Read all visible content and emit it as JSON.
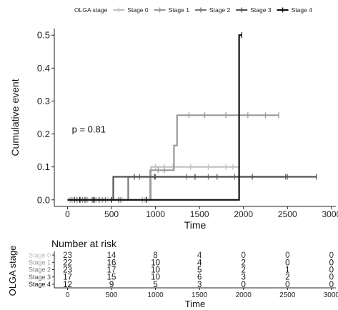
{
  "chart_data": [
    {
      "type": "line",
      "subtype": "kaplan-meier-cumulative-event",
      "title": "",
      "xlabel": "Time",
      "ylabel": "Cumulative event",
      "xlim": [
        -150,
        3050
      ],
      "ylim": [
        -0.02,
        0.52
      ],
      "xticks": [
        0,
        500,
        1000,
        1500,
        2000,
        2500,
        3000
      ],
      "yticks": [
        0.0,
        0.1,
        0.2,
        0.3,
        0.4,
        0.5
      ],
      "ytick_labels": [
        "0.0",
        "0.1",
        "0.2",
        "0.3",
        "0.4",
        "0.5"
      ],
      "grid": false,
      "legend": {
        "title": "OLGA stage",
        "placement": "top",
        "entries": [
          "Stage 0",
          "Stage 1",
          "Stage 2",
          "Stage 3",
          "Stage 4"
        ]
      },
      "annotation": "p = 0.81",
      "annotation_pos": {
        "x": 50,
        "y": 0.205
      },
      "series": [
        {
          "name": "Stage 0",
          "color": "#c0c0c0",
          "steps": [
            [
              0,
              0
            ],
            [
              950,
              0
            ],
            [
              950,
              0.1
            ],
            [
              1950,
              0.1
            ]
          ],
          "censored": [
            [
              20,
              0
            ],
            [
              60,
              0
            ],
            [
              100,
              0
            ],
            [
              150,
              0
            ],
            [
              190,
              0
            ],
            [
              230,
              0
            ],
            [
              290,
              0
            ],
            [
              330,
              0
            ],
            [
              380,
              0
            ],
            [
              460,
              0
            ],
            [
              620,
              0
            ],
            [
              880,
              0
            ],
            [
              1000,
              0.1
            ],
            [
              1100,
              0.1
            ],
            [
              1200,
              0.1
            ],
            [
              1400,
              0.1
            ],
            [
              1600,
              0.1
            ],
            [
              1800,
              0.1
            ],
            [
              1880,
              0.1
            ],
            [
              1950,
              0.1
            ]
          ]
        },
        {
          "name": "Stage 1",
          "color": "#9a9a9a",
          "steps": [
            [
              0,
              0
            ],
            [
              940,
              0
            ],
            [
              940,
              0.09
            ],
            [
              1210,
              0.09
            ],
            [
              1210,
              0.165
            ],
            [
              1245,
              0.165
            ],
            [
              1245,
              0.257
            ],
            [
              2400,
              0.257
            ]
          ],
          "censored": [
            [
              110,
              0
            ],
            [
              220,
              0
            ],
            [
              310,
              0
            ],
            [
              400,
              0
            ],
            [
              600,
              0
            ],
            [
              850,
              0
            ],
            [
              1030,
              0.09
            ],
            [
              1100,
              0.09
            ],
            [
              1380,
              0.257
            ],
            [
              1560,
              0.257
            ],
            [
              1800,
              0.257
            ],
            [
              2050,
              0.257
            ],
            [
              2250,
              0.257
            ],
            [
              2400,
              0.257
            ]
          ]
        },
        {
          "name": "Stage 2",
          "color": "#7a7a7a",
          "steps": [
            [
              0,
              0
            ],
            [
              690,
              0
            ],
            [
              690,
              0.07
            ],
            [
              2500,
              0.07
            ]
          ],
          "censored": [
            [
              40,
              0
            ],
            [
              170,
              0
            ],
            [
              280,
              0
            ],
            [
              430,
              0
            ],
            [
              580,
              0
            ],
            [
              820,
              0.07
            ],
            [
              1000,
              0.07
            ],
            [
              1350,
              0.07
            ],
            [
              1600,
              0.07
            ],
            [
              1900,
              0.07
            ],
            [
              2500,
              0.07
            ]
          ]
        },
        {
          "name": "Stage 3",
          "color": "#545454",
          "steps": [
            [
              0,
              0
            ],
            [
              520,
              0
            ],
            [
              520,
              0.07
            ],
            [
              2830,
              0.07
            ]
          ],
          "censored": [
            [
              80,
              0
            ],
            [
              200,
              0
            ],
            [
              360,
              0
            ],
            [
              760,
              0.07
            ],
            [
              990,
              0.07
            ],
            [
              1450,
              0.07
            ],
            [
              1700,
              0.07
            ],
            [
              2100,
              0.07
            ],
            [
              2480,
              0.07
            ],
            [
              2830,
              0.07
            ]
          ]
        },
        {
          "name": "Stage 4",
          "color": "#111111",
          "steps": [
            [
              0,
              0
            ],
            [
              1950,
              0
            ],
            [
              1950,
              0.5
            ],
            [
              1980,
              0.5
            ]
          ],
          "censored": [
            [
              140,
              0
            ],
            [
              300,
              0
            ],
            [
              500,
              0
            ],
            [
              900,
              0
            ],
            [
              1980,
              0.5
            ]
          ]
        }
      ]
    },
    {
      "type": "table",
      "subtype": "risk-table",
      "title": "Number at risk",
      "xlabel": "Time",
      "ylabel": "OLGA stage",
      "xlim": [
        -150,
        3050
      ],
      "xticks": [
        0,
        500,
        1000,
        1500,
        2000,
        2500,
        3000
      ],
      "times": [
        0,
        500,
        1000,
        1500,
        2000,
        2500,
        3000
      ],
      "rows": [
        {
          "name": "Stage 0",
          "color": "#c0c0c0",
          "values": [
            "23",
            "14",
            "8",
            "4",
            "0",
            "0",
            "0"
          ]
        },
        {
          "name": "Stage 1",
          "color": "#9a9a9a",
          "values": [
            "22",
            "16",
            "10",
            "4",
            "2",
            "0",
            "0"
          ]
        },
        {
          "name": "Stage 2",
          "color": "#7a7a7a",
          "values": [
            "23",
            "17",
            "10",
            "5",
            "2",
            "1",
            "0"
          ]
        },
        {
          "name": "Stage 3",
          "color": "#545454",
          "values": [
            "17",
            "15",
            "10",
            "6",
            "3",
            "2",
            "0"
          ]
        },
        {
          "name": "Stage 4",
          "color": "#111111",
          "values": [
            "12",
            "9",
            "5",
            "3",
            "0",
            "0",
            "0"
          ]
        }
      ]
    }
  ]
}
